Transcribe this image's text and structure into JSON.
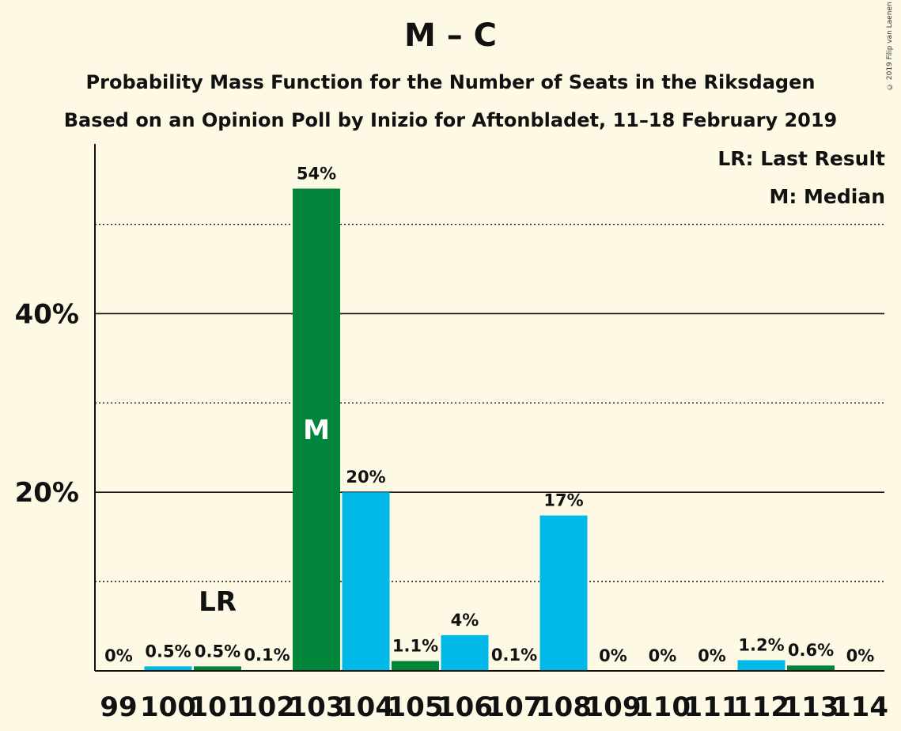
{
  "copyright": "© 2019 Filip van Laenen",
  "chart_data": {
    "type": "bar",
    "title": "M – C",
    "subtitle": "Probability Mass Function for the Number of Seats in the Riksdagen",
    "subtitle2": "Based on an Opinion Poll by Inizio for Aftonbladet, 11–18 February 2019",
    "categories": [
      "99",
      "100",
      "101",
      "102",
      "103",
      "104",
      "105",
      "106",
      "107",
      "108",
      "109",
      "110",
      "111",
      "112",
      "113",
      "114"
    ],
    "values": [
      0,
      0.5,
      0.5,
      0.1,
      54,
      20,
      1.1,
      4,
      0.1,
      17.4,
      0,
      0,
      0,
      1.2,
      0.6,
      0
    ],
    "value_labels": [
      "0%",
      "0.5%",
      "0.5%",
      "0.1%",
      "54%",
      "20%",
      "1.1%",
      "4%",
      "0.1%",
      "17%",
      "0%",
      "0%",
      "0%",
      "1.2%",
      "0.6%",
      "0%"
    ],
    "colors": [
      "#00b9e8",
      "#00b9e8",
      "#00853a",
      "#00b9e8",
      "#00853a",
      "#00b9e8",
      "#00853a",
      "#00b9e8",
      "#00853a",
      "#00b9e8",
      "#00853a",
      "#00b9e8",
      "#00853a",
      "#00b9e8",
      "#00853a",
      "#00b9e8"
    ],
    "ylim": [
      0,
      59
    ],
    "yticks_major": [
      20,
      40
    ],
    "ytick_labels": [
      "20%",
      "40%"
    ],
    "yticks_minor": [
      10,
      30,
      50
    ],
    "last_result_index": 2,
    "last_result_marker": "LR",
    "median_index": 4,
    "median_marker": "M",
    "legend": {
      "position": "top-right",
      "entries": [
        "LR: Last Result",
        "M: Median"
      ]
    }
  }
}
